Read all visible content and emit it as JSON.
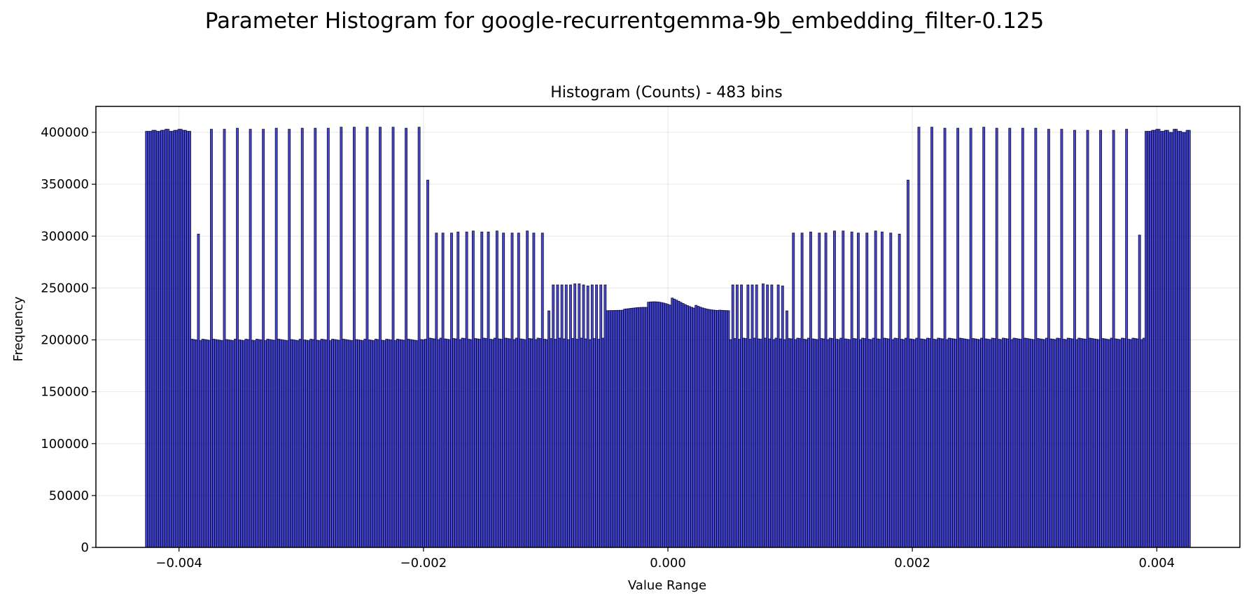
{
  "figure": {
    "suptitle": "Parameter Histogram for google-recurrentgemma-9b_embedding_filter-0.125"
  },
  "chart_data": {
    "type": "bar",
    "title": "Histogram (Counts) - 483 bins",
    "xlabel": "Value Range",
    "ylabel": "Frequency",
    "bins": 483,
    "xlim": [
      -0.00468,
      0.00468
    ],
    "ylim": [
      0,
      425000
    ],
    "x_range": [
      -0.004275,
      0.004275
    ],
    "x_ticks": [
      -0.004,
      -0.002,
      0.0,
      0.002,
      0.004
    ],
    "x_tick_labels": [
      "−0.004",
      "−0.002",
      "0.000",
      "0.002",
      "0.004"
    ],
    "y_ticks": [
      0,
      50000,
      100000,
      150000,
      200000,
      250000,
      300000,
      350000,
      400000
    ],
    "y_tick_labels": [
      "0",
      "50000",
      "100000",
      "150000",
      "200000",
      "250000",
      "300000",
      "350000",
      "400000"
    ],
    "grid": true,
    "bar_color": "#0000cc",
    "edge_color": "#000000",
    "value_regions": [
      {
        "x_from": -0.004275,
        "x_to": -0.0039,
        "description": "dense top band",
        "values": [
          401000,
          402000,
          401000,
          402000,
          403000,
          401000,
          402000,
          403000,
          402000,
          401000
        ]
      },
      {
        "x_from": -0.0039,
        "x_to": -0.002,
        "base": 200000,
        "spikes": [
          302000,
          403000,
          403000,
          404000,
          403000,
          403000,
          404000,
          403000,
          404000,
          404000,
          404000,
          405000,
          405000,
          405000,
          405000,
          405000,
          404000,
          405000
        ]
      },
      {
        "x_from": -0.002,
        "x_to": -0.001,
        "base": 201000,
        "spikes": [
          354000,
          303000,
          303000,
          303000,
          304000,
          304000,
          305000,
          304000,
          304000,
          305000,
          303000,
          303000,
          303000,
          305000,
          303000,
          303000
        ]
      },
      {
        "x_from": -0.001,
        "x_to": -0.0005,
        "base": 201000,
        "spikes": [
          228000,
          253000,
          253000,
          253000,
          253000,
          253000,
          254000,
          254000,
          253000,
          252000,
          253000,
          253000,
          253000,
          253000
        ]
      },
      {
        "x_from": -0.0005,
        "x_to": 0.0005,
        "base": 228000,
        "center_peak": 242000
      },
      {
        "x_from": 0.0005,
        "x_to": 0.001,
        "base": 201000,
        "spikes": [
          253000,
          253000,
          253000,
          253000,
          253000,
          253000,
          254000,
          253000,
          253000,
          253000,
          252000,
          228000
        ]
      },
      {
        "x_from": 0.001,
        "x_to": 0.002,
        "base": 201000,
        "spikes": [
          303000,
          303000,
          304000,
          303000,
          303000,
          305000,
          305000,
          304000,
          303000,
          303000,
          305000,
          304000,
          303000,
          302000,
          354000
        ]
      },
      {
        "x_from": 0.002,
        "x_to": 0.0039,
        "base": 201000,
        "spikes": [
          405000,
          405000,
          404000,
          404000,
          404000,
          405000,
          404000,
          404000,
          404000,
          404000,
          403000,
          403000,
          402000,
          402000,
          402000,
          402000,
          403000,
          301000
        ]
      },
      {
        "x_from": 0.0039,
        "x_to": 0.004275,
        "description": "dense top band",
        "values": [
          401000,
          402000,
          403000,
          401000,
          402000,
          400000,
          403000,
          401000,
          400000,
          402000
        ]
      }
    ]
  }
}
